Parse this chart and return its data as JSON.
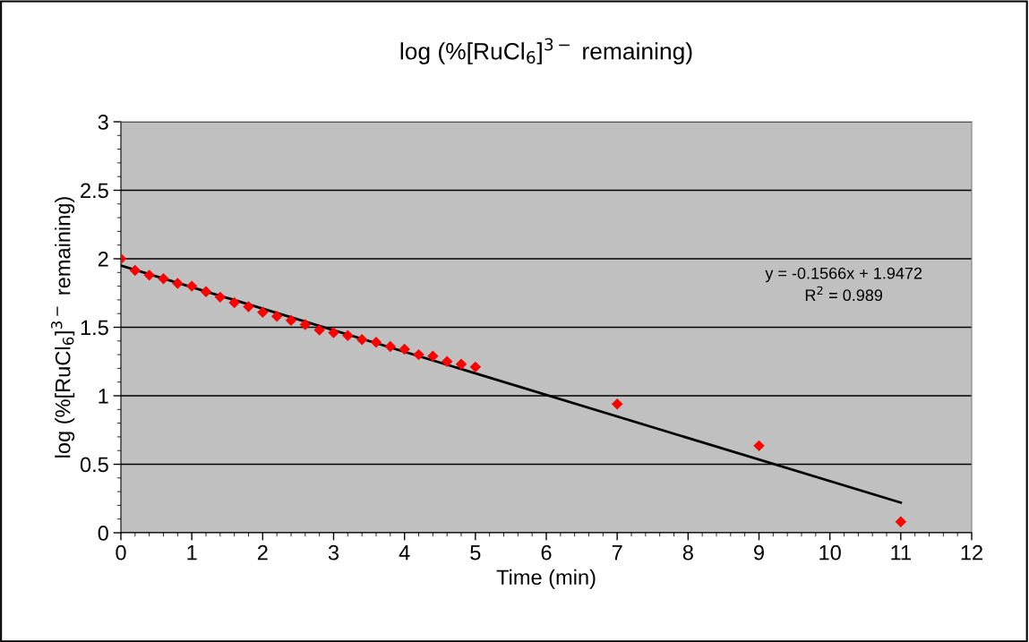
{
  "chart_data": {
    "type": "scatter",
    "title": "log (%[RuCl$_{6}$]$^{3−}$ remaining)",
    "xlabel": "Time (min)",
    "ylabel": "log (%[RuCl$_{6}$]$^{3−}$ remaining)",
    "x": [
      0,
      0.2,
      0.4,
      0.6,
      0.8,
      1.0,
      1.2,
      1.4,
      1.6,
      1.8,
      2.0,
      2.2,
      2.4,
      2.6,
      2.8,
      3.0,
      3.2,
      3.4,
      3.6,
      3.8,
      4.0,
      4.2,
      4.4,
      4.6,
      4.8,
      5.0,
      7,
      9,
      11
    ],
    "series": [
      {
        "color": "#ff0000",
        "marker": "diamond",
        "values": [
          2.0,
          1.915,
          1.88,
          1.855,
          1.82,
          1.8,
          1.76,
          1.72,
          1.68,
          1.65,
          1.61,
          1.58,
          1.55,
          1.52,
          1.48,
          1.46,
          1.44,
          1.41,
          1.39,
          1.36,
          1.34,
          1.3,
          1.29,
          1.25,
          1.23,
          1.21,
          0.94,
          0.635,
          0.08
        ]
      },
      {
        "type": "line",
        "color": "#000000",
        "marker": "none",
        "line_style": "solid",
        "x": [
          0,
          11
        ],
        "values": [
          1.95,
          0.22
        ]
      }
    ],
    "annotations": [
      "y = -0.1566x + 1.9472\nR$^{2}$ = 0.989"
    ],
    "xlim": [
      0,
      12
    ],
    "xticks": [
      0,
      1,
      2,
      3,
      4,
      5,
      6,
      7,
      8,
      9,
      10,
      11,
      12
    ],
    "ylim": [
      0,
      3
    ],
    "yticks": [
      0,
      0.5,
      1,
      1.5,
      2,
      2.5,
      3
    ],
    "grid": "y",
    "legend": false
  }
}
